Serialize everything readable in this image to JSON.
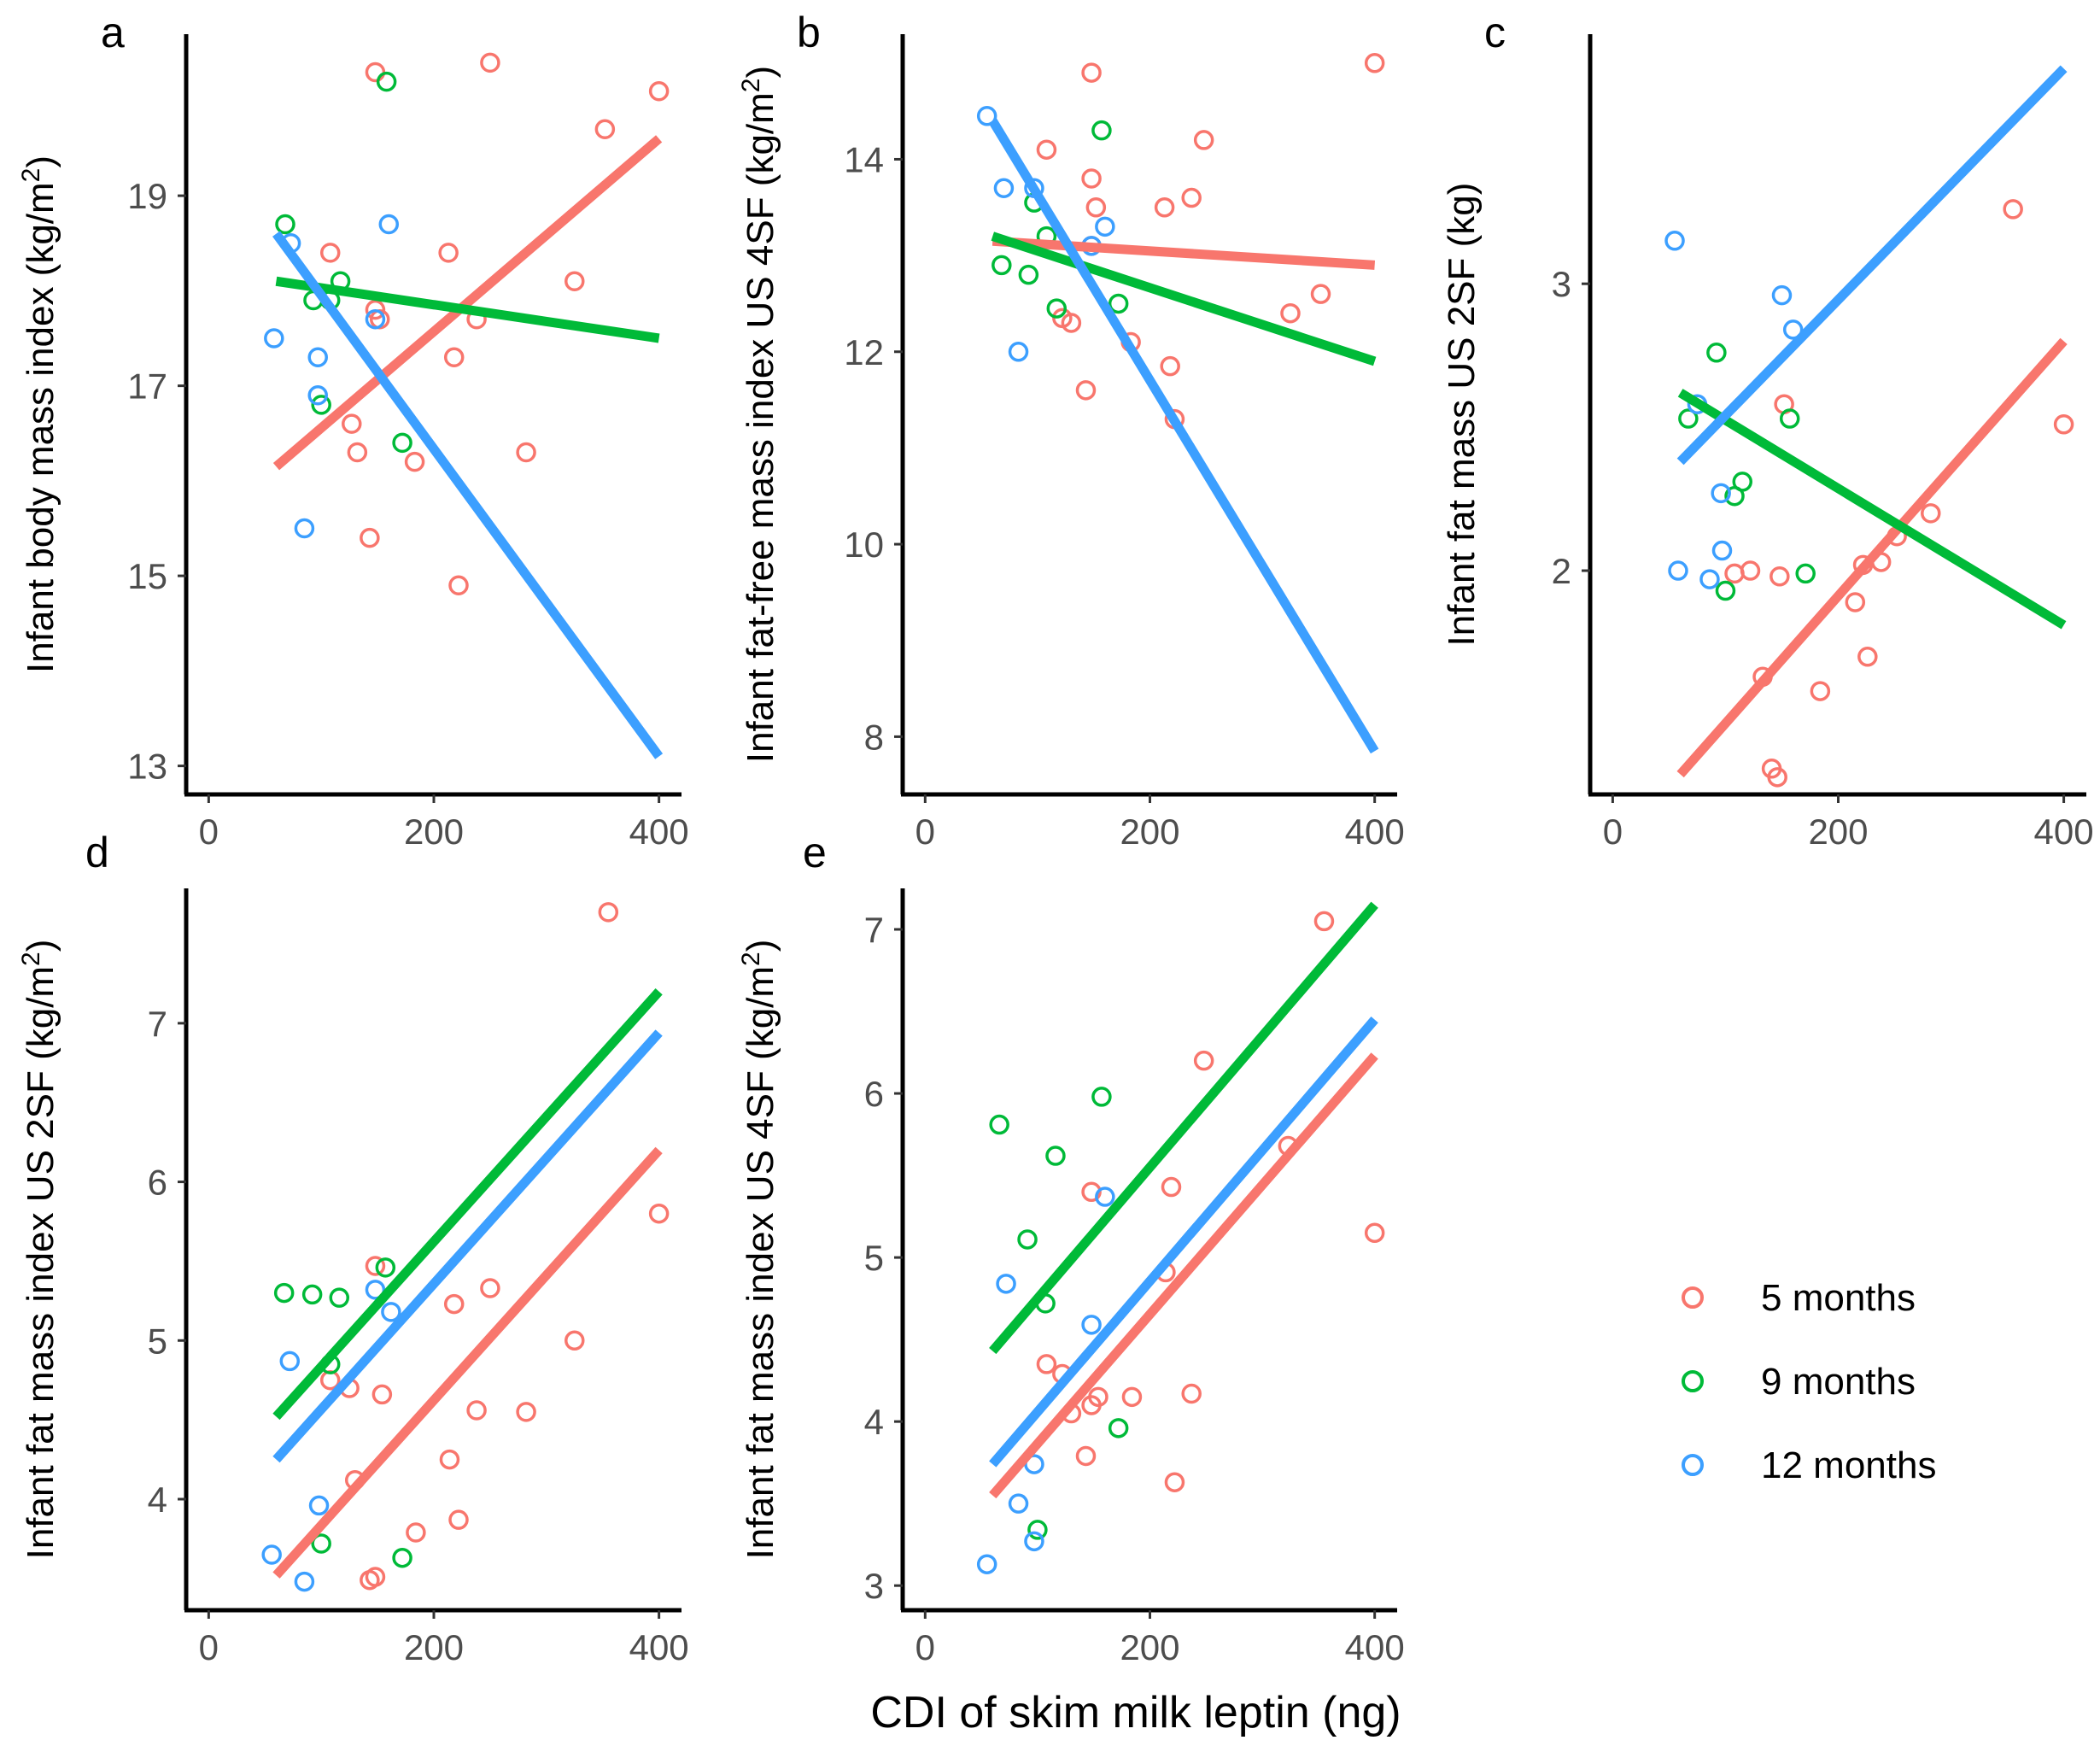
{
  "colors": {
    "5 months": "#F8766D",
    "9 months": "#00BA38",
    "12 months": "#3C9FFF"
  },
  "x_title": "CDI of skim milk leptin (ng)",
  "legend": {
    "entries": [
      "5 months",
      "9 months",
      "12 months"
    ]
  },
  "chart_data": [
    {
      "panel": "a",
      "type": "scatter",
      "ylabel": "Infant body mass index (kg/m²)",
      "xlim": [
        -20,
        420
      ],
      "ylim": [
        12.7,
        20.7
      ],
      "xticks": [
        0,
        200,
        400
      ],
      "yticks": [
        13,
        15,
        17,
        19
      ],
      "series": [
        {
          "name": "5 months",
          "points": [
            [
              148,
              20.3
            ],
            [
              250,
              20.4
            ],
            [
              400,
              20.1
            ],
            [
              352,
              19.7
            ],
            [
              108,
              18.4
            ],
            [
              213,
              18.4
            ],
            [
              325,
              18.1
            ],
            [
              148,
              17.8
            ],
            [
              152,
              17.7
            ],
            [
              238,
              17.7
            ],
            [
              218,
              17.3
            ],
            [
              127,
              16.6
            ],
            [
              132,
              16.3
            ],
            [
              282,
              16.3
            ],
            [
              183,
              16.2
            ],
            [
              143,
              15.4
            ],
            [
              222,
              14.9
            ]
          ],
          "fit": [
            [
              60,
              16.15
            ],
            [
              400,
              19.6
            ]
          ]
        },
        {
          "name": "9 months",
          "points": [
            [
              158,
              20.2
            ],
            [
              68,
              18.7
            ],
            [
              117,
              18.1
            ],
            [
              93,
              17.9
            ],
            [
              108,
              17.9
            ],
            [
              100,
              16.8
            ],
            [
              172,
              16.4
            ]
          ],
          "fit": [
            [
              60,
              18.1
            ],
            [
              400,
              17.5
            ]
          ]
        },
        {
          "name": "12 months",
          "points": [
            [
              160,
              18.7
            ],
            [
              73,
              18.5
            ],
            [
              58,
              17.5
            ],
            [
              148,
              17.7
            ],
            [
              97,
              17.3
            ],
            [
              97,
              16.9
            ],
            [
              85,
              15.5
            ]
          ],
          "fit": [
            [
              60,
              18.6
            ],
            [
              400,
              13.1
            ]
          ]
        }
      ]
    },
    {
      "panel": "b",
      "type": "scatter",
      "ylabel": "Infant fat-free mass index US 4SF (kg/m²)",
      "xlim": [
        -20,
        420
      ],
      "ylim": [
        7.4,
        15.3
      ],
      "xticks": [
        0,
        200,
        400
      ],
      "yticks": [
        8,
        10,
        12,
        14
      ],
      "series": [
        {
          "name": "5 months",
          "points": [
            [
              400,
              15.0
            ],
            [
              148,
              14.9
            ],
            [
              108,
              14.1
            ],
            [
              248,
              14.2
            ],
            [
              148,
              13.8
            ],
            [
              152,
              13.5
            ],
            [
              213,
              13.5
            ],
            [
              237,
              13.6
            ],
            [
              148,
              13.1
            ],
            [
              352,
              12.6
            ],
            [
              325,
              12.4
            ],
            [
              122,
              12.35
            ],
            [
              130,
              12.3
            ],
            [
              183,
              12.1
            ],
            [
              218,
              11.85
            ],
            [
              143,
              11.6
            ],
            [
              222,
              11.3
            ]
          ],
          "fit": [
            [
              60,
              13.15
            ],
            [
              400,
              12.9
            ]
          ]
        },
        {
          "name": "9 months",
          "points": [
            [
              157,
              14.3
            ],
            [
              97,
              13.55
            ],
            [
              108,
              13.2
            ],
            [
              68,
              12.9
            ],
            [
              92,
              12.8
            ],
            [
              172,
              12.5
            ],
            [
              117,
              12.45
            ]
          ],
          "fit": [
            [
              60,
              13.2
            ],
            [
              400,
              11.9
            ]
          ]
        },
        {
          "name": "12 months",
          "points": [
            [
              55,
              14.45
            ],
            [
              70,
              13.7
            ],
            [
              97,
              13.7
            ],
            [
              160,
              13.3
            ],
            [
              148,
              13.1
            ],
            [
              83,
              12.0
            ]
          ],
          "fit": [
            [
              60,
              14.4
            ],
            [
              400,
              7.85
            ]
          ]
        }
      ]
    },
    {
      "panel": "c",
      "type": "scatter",
      "ylabel": "Infant fat mass US 2SF (kg)",
      "xlim": [
        -20,
        420
      ],
      "ylim": [
        1.22,
        3.87
      ],
      "xticks": [
        0,
        200,
        400
      ],
      "yticks": [
        2,
        3
      ],
      "series": [
        {
          "name": "5 months",
          "points": [
            [
              355,
              3.26
            ],
            [
              152,
              2.58
            ],
            [
              400,
              2.51
            ],
            [
              282,
              2.2
            ],
            [
              252,
              2.12
            ],
            [
              222,
              2.02
            ],
            [
              238,
              2.03
            ],
            [
              108,
              1.99
            ],
            [
              122,
              2.0
            ],
            [
              148,
              1.98
            ],
            [
              215,
              1.89
            ],
            [
              226,
              1.7
            ],
            [
              133,
              1.63
            ],
            [
              184,
              1.58
            ],
            [
              141,
              1.31
            ],
            [
              146,
              1.28
            ]
          ],
          "fit": [
            [
              60,
              1.29
            ],
            [
              400,
              2.8
            ]
          ]
        },
        {
          "name": "9 months",
          "points": [
            [
              92,
              2.76
            ],
            [
              67,
              2.53
            ],
            [
              157,
              2.53
            ],
            [
              115,
              2.31
            ],
            [
              108,
              2.26
            ],
            [
              100,
              1.93
            ],
            [
              171,
              1.99
            ]
          ],
          "fit": [
            [
              60,
              2.62
            ],
            [
              400,
              1.81
            ]
          ]
        },
        {
          "name": "12 months",
          "points": [
            [
              55,
              3.15
            ],
            [
              150,
              2.96
            ],
            [
              160,
              2.84
            ],
            [
              75,
              2.58
            ],
            [
              96,
              2.27
            ],
            [
              97,
              2.07
            ],
            [
              58,
              2.0
            ],
            [
              86,
              1.97
            ]
          ],
          "fit": [
            [
              60,
              2.38
            ],
            [
              400,
              3.75
            ]
          ]
        }
      ]
    },
    {
      "panel": "d",
      "type": "scatter",
      "ylabel": "Infant fat mass index US 2SF (kg/m²)",
      "xlim": [
        -20,
        420
      ],
      "ylim": [
        3.3,
        7.85
      ],
      "xticks": [
        0,
        200,
        400
      ],
      "yticks": [
        4,
        5,
        6,
        7
      ],
      "series": [
        {
          "name": "5 months",
          "points": [
            [
              355,
              7.7
            ],
            [
              400,
              5.8
            ],
            [
              148,
              5.47
            ],
            [
              250,
              5.33
            ],
            [
              218,
              5.23
            ],
            [
              325,
              5.0
            ],
            [
              108,
              4.75
            ],
            [
              125,
              4.7
            ],
            [
              154,
              4.66
            ],
            [
              238,
              4.56
            ],
            [
              282,
              4.55
            ],
            [
              214,
              4.25
            ],
            [
              130,
              4.12
            ],
            [
              222,
              3.87
            ],
            [
              184,
              3.79
            ],
            [
              143,
              3.49
            ],
            [
              148,
              3.51
            ]
          ],
          "fit": [
            [
              60,
              3.52
            ],
            [
              400,
              6.2
            ]
          ]
        },
        {
          "name": "9 months",
          "points": [
            [
              157,
              5.46
            ],
            [
              67,
              5.3
            ],
            [
              92,
              5.29
            ],
            [
              116,
              5.27
            ],
            [
              108,
              4.85
            ],
            [
              100,
              3.72
            ],
            [
              172,
              3.63
            ]
          ],
          "fit": [
            [
              60,
              4.52
            ],
            [
              400,
              7.2
            ]
          ]
        },
        {
          "name": "12 months",
          "points": [
            [
              148,
              5.32
            ],
            [
              162,
              5.18
            ],
            [
              72,
              4.87
            ],
            [
              98,
              3.96
            ],
            [
              56,
              3.65
            ],
            [
              85,
              3.48
            ]
          ],
          "fit": [
            [
              60,
              4.25
            ],
            [
              400,
              6.94
            ]
          ]
        }
      ]
    },
    {
      "panel": "e",
      "type": "scatter",
      "ylabel": "Infant fat mass index US 4SF (kg/m²)",
      "xlim": [
        -20,
        420
      ],
      "ylim": [
        2.85,
        7.25
      ],
      "xticks": [
        0,
        200,
        400
      ],
      "yticks": [
        3,
        4,
        5,
        6,
        7
      ],
      "series": [
        {
          "name": "5 months",
          "points": [
            [
              355,
              7.05
            ],
            [
              248,
              6.2
            ],
            [
              323,
              5.68
            ],
            [
              148,
              5.4
            ],
            [
              219,
              5.43
            ],
            [
              214,
              4.91
            ],
            [
              400,
              5.15
            ],
            [
              108,
              4.35
            ],
            [
              122,
              4.29
            ],
            [
              130,
              4.05
            ],
            [
              148,
              4.1
            ],
            [
              154,
              4.15
            ],
            [
              184,
              4.15
            ],
            [
              237,
              4.17
            ],
            [
              143,
              3.79
            ],
            [
              222,
              3.63
            ]
          ],
          "fit": [
            [
              60,
              3.55
            ],
            [
              400,
              6.23
            ]
          ]
        },
        {
          "name": "9 months",
          "points": [
            [
              157,
              5.98
            ],
            [
              66,
              5.81
            ],
            [
              116,
              5.62
            ],
            [
              91,
              5.11
            ],
            [
              107,
              4.72
            ],
            [
              172,
              3.96
            ],
            [
              100,
              3.34
            ]
          ],
          "fit": [
            [
              60,
              4.43
            ],
            [
              400,
              7.15
            ]
          ]
        },
        {
          "name": "12 months",
          "points": [
            [
              160,
              5.37
            ],
            [
              72,
              4.84
            ],
            [
              148,
              4.59
            ],
            [
              97,
              3.74
            ],
            [
              83,
              3.5
            ],
            [
              97,
              3.27
            ],
            [
              55,
              3.13
            ]
          ],
          "fit": [
            [
              60,
              3.74
            ],
            [
              400,
              6.45
            ]
          ]
        }
      ]
    }
  ]
}
